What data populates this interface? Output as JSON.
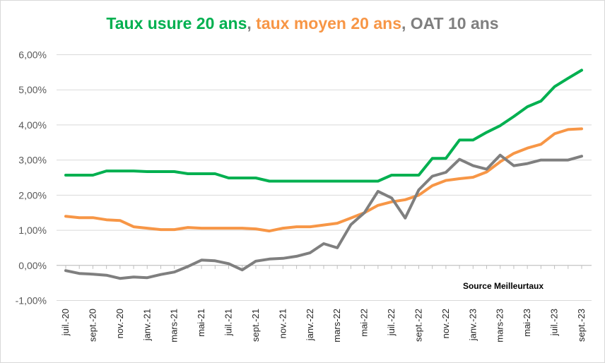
{
  "chart_data": {
    "type": "line",
    "title_parts": [
      {
        "text": "Taux usure 20 ans",
        "color": "#00b050"
      },
      {
        "text": ", ",
        "color": "#7f7f7f"
      },
      {
        "text": "taux moyen 20 ans",
        "color": "#f79646"
      },
      {
        "text": ", ",
        "color": "#7f7f7f"
      },
      {
        "text": "OAT 10 ans",
        "color": "#7f7f7f"
      }
    ],
    "xlabel": "",
    "ylabel": "",
    "ylim": [
      -1,
      6
    ],
    "y_ticks": [
      -1,
      0,
      1,
      2,
      3,
      4,
      5,
      6
    ],
    "y_tick_labels": [
      "-1,00%",
      "0,00%",
      "1,00%",
      "2,00%",
      "3,00%",
      "4,00%",
      "5,00%",
      "6,00%"
    ],
    "grid": true,
    "legend": "none",
    "annotation": "Source Meilleurtaux",
    "x_tick_labels": [
      "juil.-20",
      "sept.-20",
      "nov.-20",
      "janv.-21",
      "mars-21",
      "mai-21",
      "juil.-21",
      "sept.-21",
      "nov.-21",
      "janv.-22",
      "mars-22",
      "mai-22",
      "juil.-22",
      "sept.-22",
      "nov.-22",
      "janv.-23",
      "mars-23",
      "mai-23",
      "juil.-23",
      "sept.-23"
    ],
    "x_tick_step": 2,
    "x": [
      "juil.-20",
      "août-20",
      "sept.-20",
      "oct.-20",
      "nov.-20",
      "déc.-20",
      "janv.-21",
      "févr.-21",
      "mars-21",
      "avr.-21",
      "mai-21",
      "juin-21",
      "juil.-21",
      "août-21",
      "sept.-21",
      "oct.-21",
      "nov.-21",
      "déc.-21",
      "janv.-22",
      "févr.-22",
      "mars-22",
      "avr.-22",
      "mai-22",
      "juin-22",
      "juil.-22",
      "août-22",
      "sept.-22",
      "oct.-22",
      "nov.-22",
      "déc.-22",
      "janv.-23",
      "févr.-23",
      "mars-23",
      "avr.-23",
      "mai-23",
      "juin-23",
      "juil.-23",
      "août-23",
      "sept.-23"
    ],
    "series": [
      {
        "name": "Taux usure 20 ans",
        "color": "#00b050",
        "values": [
          2.57,
          2.57,
          2.57,
          2.69,
          2.69,
          2.69,
          2.67,
          2.67,
          2.67,
          2.61,
          2.61,
          2.61,
          2.49,
          2.49,
          2.49,
          2.4,
          2.4,
          2.4,
          2.4,
          2.4,
          2.4,
          2.4,
          2.4,
          2.4,
          2.57,
          2.57,
          2.57,
          3.05,
          3.05,
          3.57,
          3.57,
          3.79,
          3.98,
          4.24,
          4.52,
          4.68,
          5.09,
          5.33,
          5.56
        ]
      },
      {
        "name": "taux moyen 20 ans",
        "color": "#f79646",
        "values": [
          1.4,
          1.36,
          1.36,
          1.3,
          1.28,
          1.1,
          1.06,
          1.02,
          1.02,
          1.08,
          1.06,
          1.06,
          1.06,
          1.06,
          1.04,
          0.98,
          1.06,
          1.1,
          1.1,
          1.15,
          1.2,
          1.35,
          1.5,
          1.71,
          1.81,
          1.87,
          2.0,
          2.27,
          2.42,
          2.47,
          2.51,
          2.66,
          2.95,
          3.19,
          3.34,
          3.45,
          3.75,
          3.87,
          3.89
        ]
      },
      {
        "name": "OAT 10 ans",
        "color": "#7f7f7f",
        "values": [
          -0.15,
          -0.23,
          -0.25,
          -0.28,
          -0.37,
          -0.33,
          -0.35,
          -0.26,
          -0.19,
          -0.03,
          0.15,
          0.13,
          0.05,
          -0.13,
          0.12,
          0.18,
          0.2,
          0.26,
          0.36,
          0.62,
          0.5,
          1.16,
          1.5,
          2.11,
          1.92,
          1.35,
          2.15,
          2.54,
          2.65,
          3.02,
          2.84,
          2.74,
          3.14,
          2.84,
          2.9,
          3.0,
          3.0,
          3.0,
          3.11
        ]
      }
    ]
  }
}
